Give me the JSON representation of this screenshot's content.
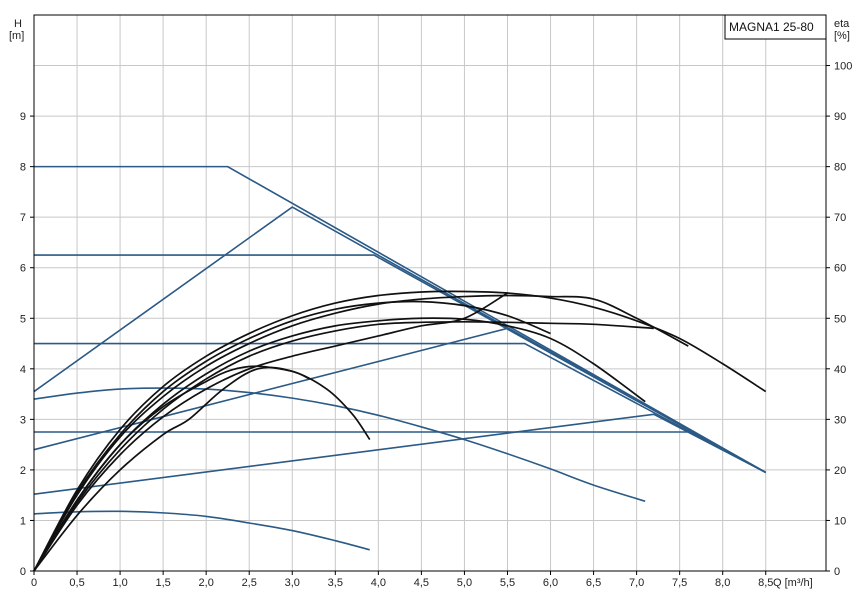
{
  "chart_data": {
    "type": "line",
    "title": "MAGNA1 25-80",
    "xlabel": "Q [m³/h]",
    "ylabel_left": [
      "H",
      "[m]"
    ],
    "ylabel_right": [
      "eta",
      "[%]"
    ],
    "xlim": [
      0,
      9.2
    ],
    "ylim_left": [
      0,
      11
    ],
    "ylim_right": [
      0,
      110
    ],
    "x_ticks": [
      "0",
      "0,5",
      "1,0",
      "1,5",
      "2,0",
      "2,5",
      "3,0",
      "3,5",
      "4,0",
      "4,5",
      "5,0",
      "5,5",
      "6,0",
      "6,5",
      "7,0",
      "7,5",
      "8,0",
      "8,5"
    ],
    "y_ticks_left": [
      "0",
      "1",
      "2",
      "3",
      "4",
      "5",
      "6",
      "7",
      "8",
      "9"
    ],
    "y_ticks_right": [
      "0",
      "10",
      "20",
      "30",
      "40",
      "50",
      "60",
      "70",
      "80",
      "90",
      "100"
    ],
    "grid": true,
    "colors": {
      "head": "#2b5a86",
      "efficiency": "#111111",
      "grid": "#c8c8c8"
    },
    "head_curves": [
      {
        "x": [
          0,
          2.25,
          8.5
        ],
        "y": [
          8.0,
          8.0,
          1.95
        ]
      },
      {
        "x": [
          0,
          3.95,
          8.5
        ],
        "y": [
          6.25,
          6.25,
          1.95
        ]
      },
      {
        "x": [
          0,
          5.7,
          8.5
        ],
        "y": [
          4.5,
          4.5,
          1.95
        ]
      },
      {
        "x": [
          0,
          7.6,
          8.5
        ],
        "y": [
          2.75,
          2.75,
          1.95
        ]
      },
      {
        "x": [
          0,
          3.0,
          8.5
        ],
        "y": [
          3.55,
          7.2,
          1.95
        ]
      },
      {
        "x": [
          0,
          5.5,
          8.5
        ],
        "y": [
          2.4,
          4.8,
          1.95
        ]
      },
      {
        "x": [
          0,
          7.2,
          8.5
        ],
        "y": [
          1.52,
          3.1,
          1.95
        ]
      },
      {
        "x": [
          0,
          0.5,
          1.0,
          1.5,
          2.0,
          2.5,
          3.0,
          3.5,
          4.0,
          4.5,
          5.0,
          5.5,
          6.0,
          6.5,
          7.1
        ],
        "y": [
          3.4,
          3.52,
          3.6,
          3.62,
          3.6,
          3.53,
          3.42,
          3.27,
          3.08,
          2.85,
          2.6,
          2.32,
          2.02,
          1.7,
          1.38
        ]
      },
      {
        "x": [
          0,
          0.5,
          1.0,
          1.5,
          2.0,
          2.5,
          3.0,
          3.5,
          3.9
        ],
        "y": [
          1.13,
          1.17,
          1.18,
          1.15,
          1.08,
          0.95,
          0.8,
          0.6,
          0.42
        ]
      }
    ],
    "efficiency_curves": [
      {
        "x": [
          0,
          0.5,
          1.0,
          1.5,
          2.0,
          2.5,
          3.0,
          3.5,
          4.0,
          4.5,
          5.0,
          5.5,
          6.0,
          6.5,
          7.0,
          7.5,
          8.0,
          8.5
        ],
        "y": [
          0,
          16,
          28,
          36.5,
          42.5,
          47,
          50.5,
          53,
          54.5,
          55.2,
          55.3,
          55,
          54,
          52.2,
          49.5,
          46,
          41,
          35.5
        ]
      },
      {
        "x": [
          0,
          0.5,
          1.0,
          1.5,
          2.0,
          2.5,
          3.0,
          3.5,
          4.0,
          4.5,
          5.0,
          5.5,
          6.0,
          6.5,
          7.0,
          7.6
        ],
        "y": [
          0,
          15,
          26.5,
          34.5,
          40.5,
          45,
          48.5,
          51,
          52.8,
          53.8,
          54.3,
          54.5,
          54.3,
          53.8,
          50,
          44.5
        ]
      },
      {
        "x": [
          0,
          0.5,
          1.0,
          1.5,
          2.0,
          2.5,
          3.0,
          3.5,
          4.0,
          4.5,
          5.0,
          5.5,
          6.0,
          6.5,
          7.1
        ],
        "y": [
          0,
          14,
          25,
          33,
          39,
          43.5,
          46.5,
          48.5,
          49.5,
          50,
          49.8,
          48.5,
          46,
          41,
          33.5
        ]
      },
      {
        "x": [
          0,
          0.5,
          1.0,
          1.5,
          2.0,
          2.5,
          3.0,
          3.5,
          4.0,
          4.5,
          5.0,
          5.5,
          6.0,
          6.5,
          7.2
        ],
        "y": [
          0,
          13.5,
          24,
          32,
          38,
          42.5,
          45.5,
          47.5,
          48.8,
          49.2,
          49.3,
          49.2,
          49,
          48.8,
          48
        ]
      },
      {
        "x": [
          0,
          0.5,
          1.0,
          1.5,
          2.0,
          2.5,
          3.0,
          3.5,
          4.0,
          4.5,
          5.0,
          5.5,
          6.0
        ],
        "y": [
          0,
          15.5,
          27,
          35.5,
          41.5,
          46,
          49.5,
          51.8,
          53,
          53.3,
          52.5,
          50.5,
          47
        ]
      },
      {
        "x": [
          0,
          0.5,
          1.0,
          1.5,
          2.0,
          2.5,
          3.0,
          3.5,
          4.0,
          4.5,
          5.0,
          5.5
        ],
        "y": [
          0,
          13,
          23,
          30.5,
          36,
          40,
          42.5,
          44.5,
          46.5,
          48.5,
          50,
          55
        ]
      },
      {
        "x": [
          0,
          0.5,
          1.0,
          1.5,
          1.8,
          2.2,
          2.6,
          3.0,
          3.4,
          3.7,
          3.9
        ],
        "y": [
          0,
          11,
          20,
          27,
          30,
          36,
          40,
          39.5,
          36,
          31,
          26
        ]
      },
      {
        "x": [
          0,
          0.5,
          1.0,
          1.5,
          2.0,
          2.3,
          2.6,
          3.0,
          3.2
        ],
        "y": [
          0,
          14,
          25,
          32.5,
          37.5,
          39.8,
          40.5,
          39.5,
          38
        ]
      }
    ]
  }
}
